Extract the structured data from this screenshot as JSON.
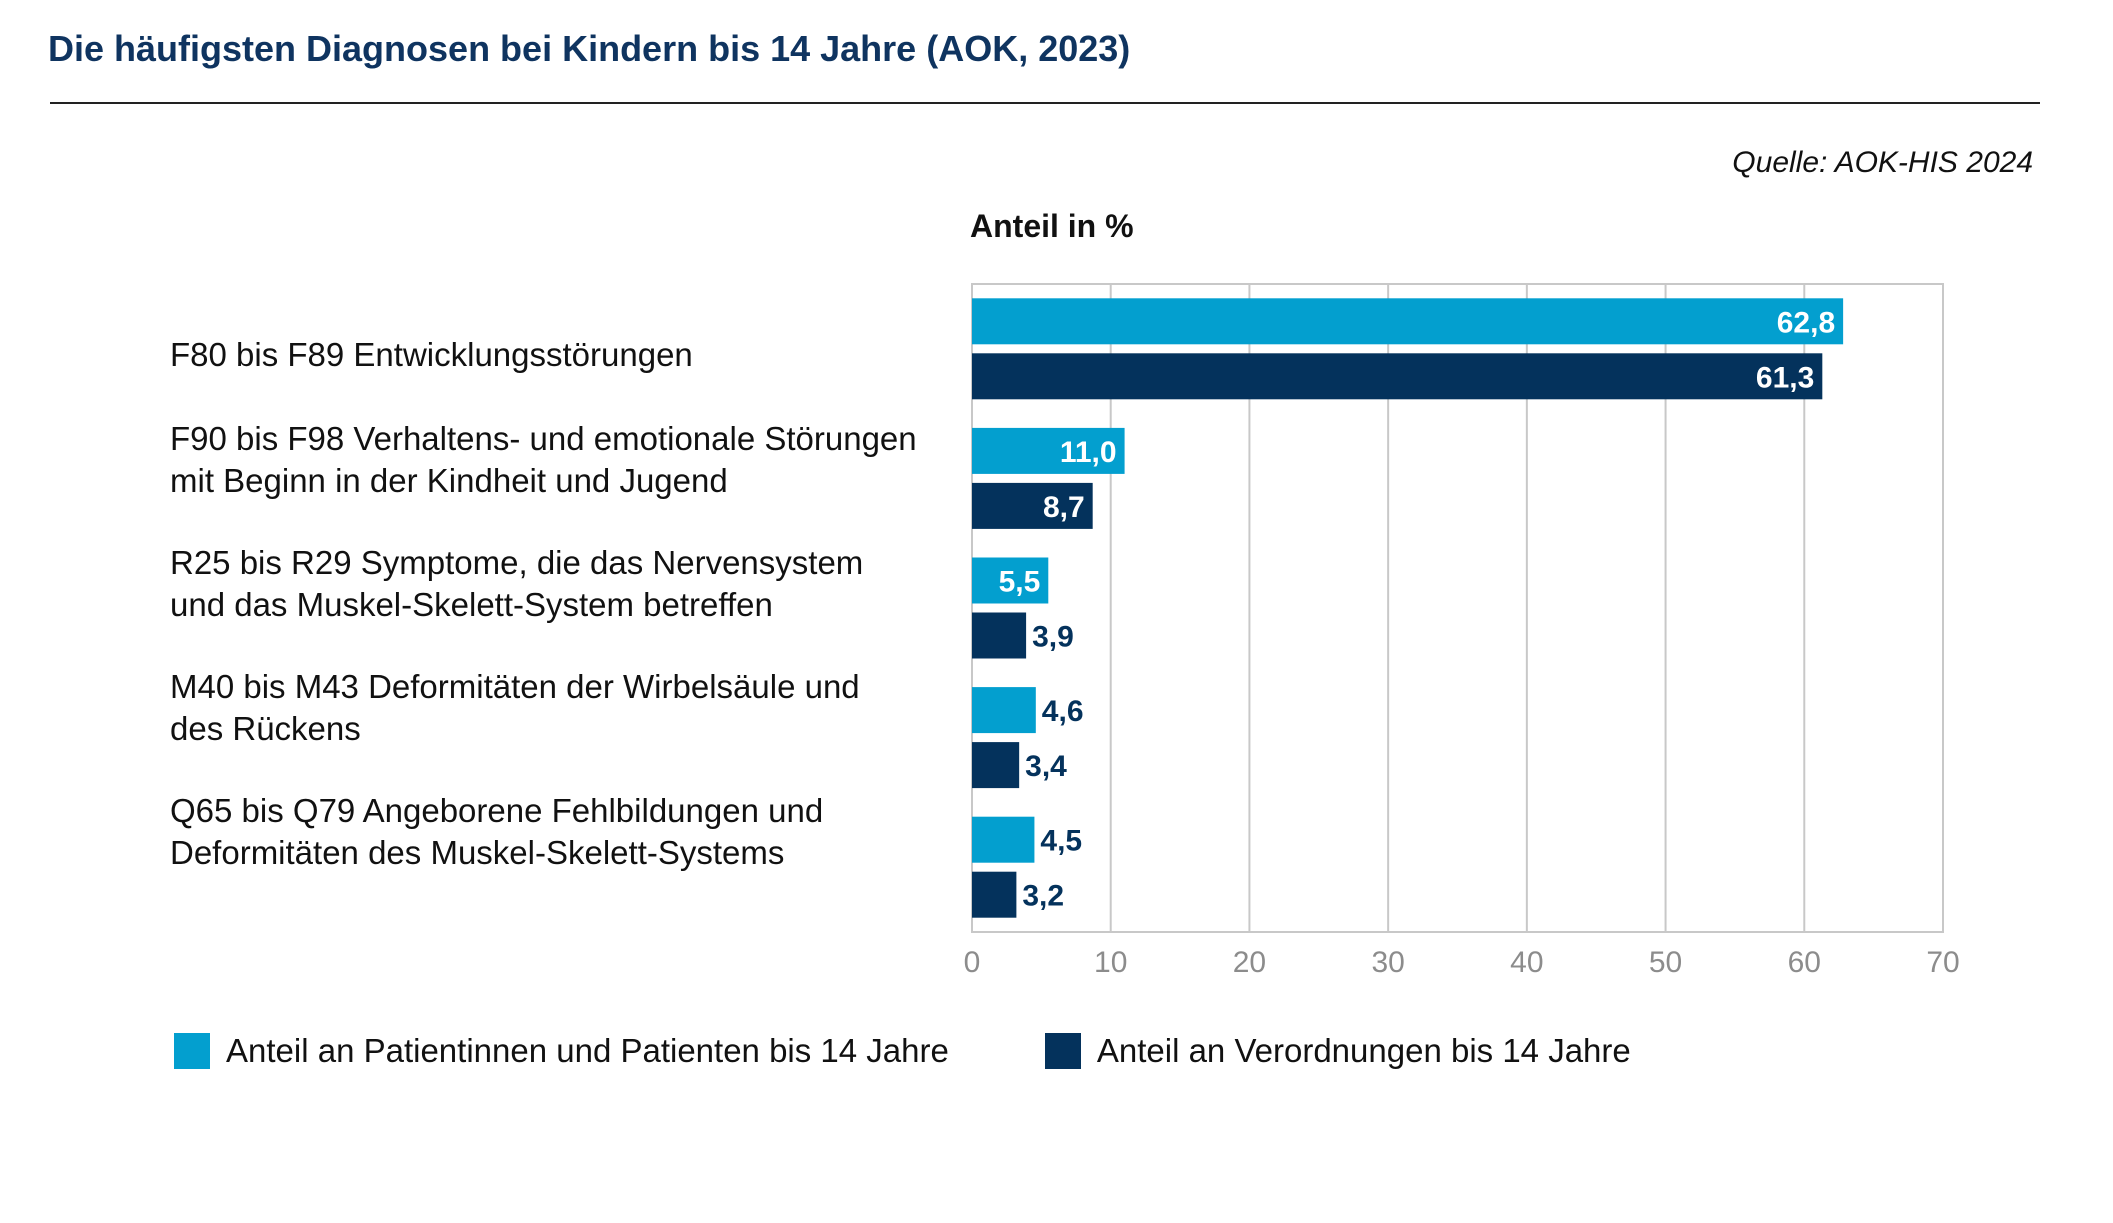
{
  "page": {
    "title": "Die häufigsten Diagnosen bei Kindern bis 14 Jahre (AOK, 2023)",
    "source": "Quelle: AOK-HIS 2024"
  },
  "colors": {
    "title": "#0f3460",
    "patients": "#039fcf",
    "prescriptions": "#04325c",
    "grid": "#c8c8c8",
    "tick": "#8c8c8c"
  },
  "chart_data": {
    "type": "bar",
    "orientation": "horizontal",
    "title": "Die häufigsten Diagnosen bei Kindern bis 14 Jahre (AOK, 2023)",
    "xlabel": "Anteil in %",
    "ylabel": "",
    "xlim": [
      0,
      70
    ],
    "xticks": [
      0,
      10,
      20,
      30,
      40,
      50,
      60,
      70
    ],
    "grid": true,
    "legend_position": "bottom",
    "categories": [
      [
        "F80 bis F89 Entwicklungsstörungen"
      ],
      [
        "F90 bis F98 Verhaltens- und emotionale Störungen",
        "mit Beginn in der Kindheit und Jugend"
      ],
      [
        "R25 bis R29 Symptome, die das Nervensystem",
        "und das Muskel-Skelett-System betreffen"
      ],
      [
        "M40 bis M43 Deformitäten der Wirbelsäule und",
        "des Rückens"
      ],
      [
        "Q65 bis Q79 Angeborene Fehlbildungen und",
        "Deformitäten des Muskel-Skelett-Systems"
      ]
    ],
    "series": [
      {
        "name": "Anteil an Patientinnen und Patienten bis 14 Jahre",
        "values": [
          62.8,
          11.0,
          5.5,
          4.6,
          4.5
        ],
        "labels": [
          "62,8",
          "11,0",
          "5,5",
          "4,6",
          "4,5"
        ]
      },
      {
        "name": "Anteil an Verordnungen bis 14 Jahre",
        "values": [
          61.3,
          8.7,
          3.9,
          3.4,
          3.2
        ],
        "labels": [
          "61,3",
          "8,7",
          "3,9",
          "3,4",
          "3,2"
        ]
      }
    ]
  }
}
